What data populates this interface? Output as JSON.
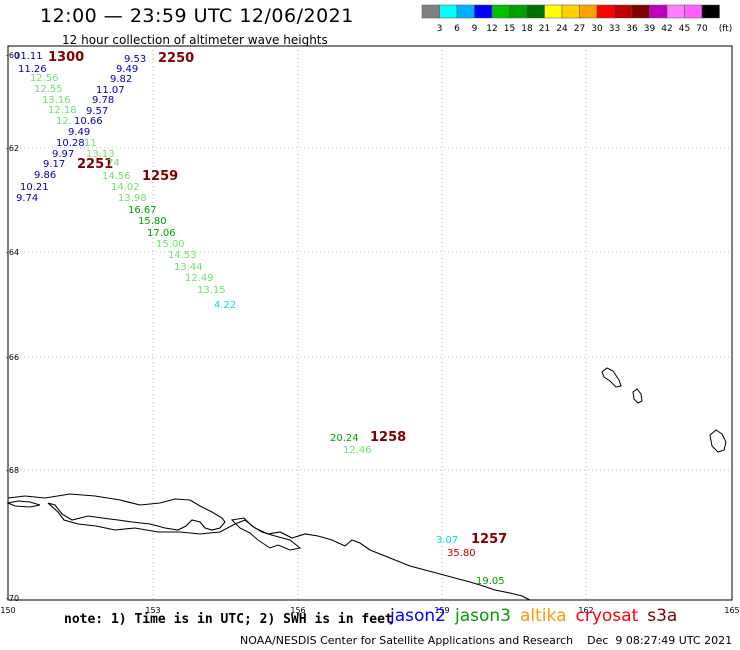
{
  "header": {
    "title": "12:00 — 23:59 UTC 12/06/2021",
    "subtitle": "12 hour collection of altimeter wave heights"
  },
  "legend": {
    "colors": [
      "#808080",
      "#00ffff",
      "#00b0ff",
      "#0000ff",
      "#00c000",
      "#00a000",
      "#007000",
      "#ffff00",
      "#ffd000",
      "#ffa000",
      "#ff0000",
      "#c00000",
      "#800000",
      "#c000c0",
      "#ff80ff",
      "#ff60ff",
      "#000000"
    ],
    "labels": [
      "3",
      "6",
      "9",
      "12",
      "15",
      "18",
      "21",
      "24",
      "27",
      "30",
      "33",
      "36",
      "39",
      "42",
      "45",
      "70"
    ],
    "unit": "(ft)"
  },
  "map": {
    "lon_ticks": [
      "150",
      "153",
      "156",
      "159",
      "162",
      "165"
    ],
    "lat_ticks": [
      "-60",
      "-62",
      "-64",
      "-66",
      "-68",
      "-70"
    ],
    "pass_times": [
      "1300",
      "2250",
      "2251",
      "1259",
      "1258",
      "1257"
    ],
    "observations": [
      {
        "label": "01.11",
        "color": "#0000c0"
      },
      {
        "label": "11.26",
        "color": "#0000c0"
      },
      {
        "label": "12.56",
        "color": "#70e070"
      },
      {
        "label": "12.55",
        "color": "#70e070"
      },
      {
        "label": "13.16",
        "color": "#70e070"
      },
      {
        "label": "12.18",
        "color": "#70e070"
      },
      {
        "label": "12.",
        "color": "#70e070"
      },
      {
        "label": "9.53",
        "color": "#0000c0"
      },
      {
        "label": "9.49",
        "color": "#0000c0"
      },
      {
        "label": "9.82",
        "color": "#0000c0"
      },
      {
        "label": "11.07",
        "color": "#0000c0"
      },
      {
        "label": "9.78",
        "color": "#0000c0"
      },
      {
        "label": "9.57",
        "color": "#0000c0"
      },
      {
        "label": "10.66",
        "color": "#0000c0"
      },
      {
        "label": "9.49",
        "color": "#0000c0"
      },
      {
        "label": "10.28",
        "color": "#0000c0"
      },
      {
        "label": "9.97",
        "color": "#0000c0"
      },
      {
        "label": "9.17",
        "color": "#0000c0"
      },
      {
        "label": "9.86",
        "color": "#0000c0"
      },
      {
        "label": "10.21",
        "color": "#0000c0"
      },
      {
        "label": "9.74",
        "color": "#0000c0"
      },
      {
        "label": "11",
        "color": "#70e070"
      },
      {
        "label": "13.13",
        "color": "#70e070"
      },
      {
        "label": "74",
        "color": "#70e070"
      },
      {
        "label": "14.56",
        "color": "#70e070"
      },
      {
        "label": "14.02",
        "color": "#70e070"
      },
      {
        "label": "13.98",
        "color": "#70e070"
      },
      {
        "label": "16.67",
        "color": "#00a000"
      },
      {
        "label": "15.80",
        "color": "#00a000"
      },
      {
        "label": "17.06",
        "color": "#00a000"
      },
      {
        "label": "15.00",
        "color": "#70e070"
      },
      {
        "label": "14.53",
        "color": "#70e070"
      },
      {
        "label": "13.44",
        "color": "#70e070"
      },
      {
        "label": "12.49",
        "color": "#70e070"
      },
      {
        "label": "13.15",
        "color": "#70e070"
      },
      {
        "label": "4.22",
        "color": "#00e0e0"
      },
      {
        "label": "20.24",
        "color": "#00a000"
      },
      {
        "label": "12.46",
        "color": "#70e070"
      },
      {
        "label": "3.07",
        "color": "#00e0e0"
      },
      {
        "label": "35.80",
        "color": "#c00000"
      },
      {
        "label": "19.05",
        "color": "#00a000"
      }
    ]
  },
  "footer": {
    "note": "note: 1) Time is in UTC; 2) SWH is in feet",
    "satellites": [
      {
        "name": "jason2",
        "color": "#0000ff"
      },
      {
        "name": "jason3",
        "color": "#00a000"
      },
      {
        "name": "altika",
        "color": "#ff9900"
      },
      {
        "name": "cryosat",
        "color": "#ff0000"
      },
      {
        "name": "s3a",
        "color": "#800000"
      }
    ],
    "credit": "NOAA/NESDIS Center for Satellite Applications and Research    Dec  9 08:27:49 UTC 2021"
  }
}
